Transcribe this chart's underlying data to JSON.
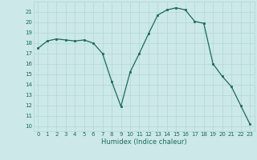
{
  "x": [
    0,
    1,
    2,
    3,
    4,
    5,
    6,
    7,
    8,
    9,
    10,
    11,
    12,
    13,
    14,
    15,
    16,
    17,
    18,
    19,
    20,
    21,
    22,
    23
  ],
  "y": [
    17.5,
    18.2,
    18.4,
    18.3,
    18.2,
    18.3,
    18.0,
    17.0,
    14.3,
    11.9,
    15.2,
    17.0,
    18.9,
    20.7,
    21.2,
    21.4,
    21.2,
    20.1,
    19.9,
    16.0,
    14.8,
    13.8,
    12.0,
    10.2
  ],
  "xlabel": "Humidex (Indice chaleur)",
  "ylim": [
    9.5,
    22.0
  ],
  "xlim": [
    -0.5,
    23.5
  ],
  "yticks": [
    10,
    11,
    12,
    13,
    14,
    15,
    16,
    17,
    18,
    19,
    20,
    21
  ],
  "xticks": [
    0,
    1,
    2,
    3,
    4,
    5,
    6,
    7,
    8,
    9,
    10,
    11,
    12,
    13,
    14,
    15,
    16,
    17,
    18,
    19,
    20,
    21,
    22,
    23
  ],
  "line_color": "#1a6b5a",
  "marker_color": "#1a6b5a",
  "bg_color": "#cce8e8",
  "grid_color": "#b0d8d8",
  "label_color": "#1a6b5a",
  "tick_fontsize": 5.0,
  "xlabel_fontsize": 6.0
}
